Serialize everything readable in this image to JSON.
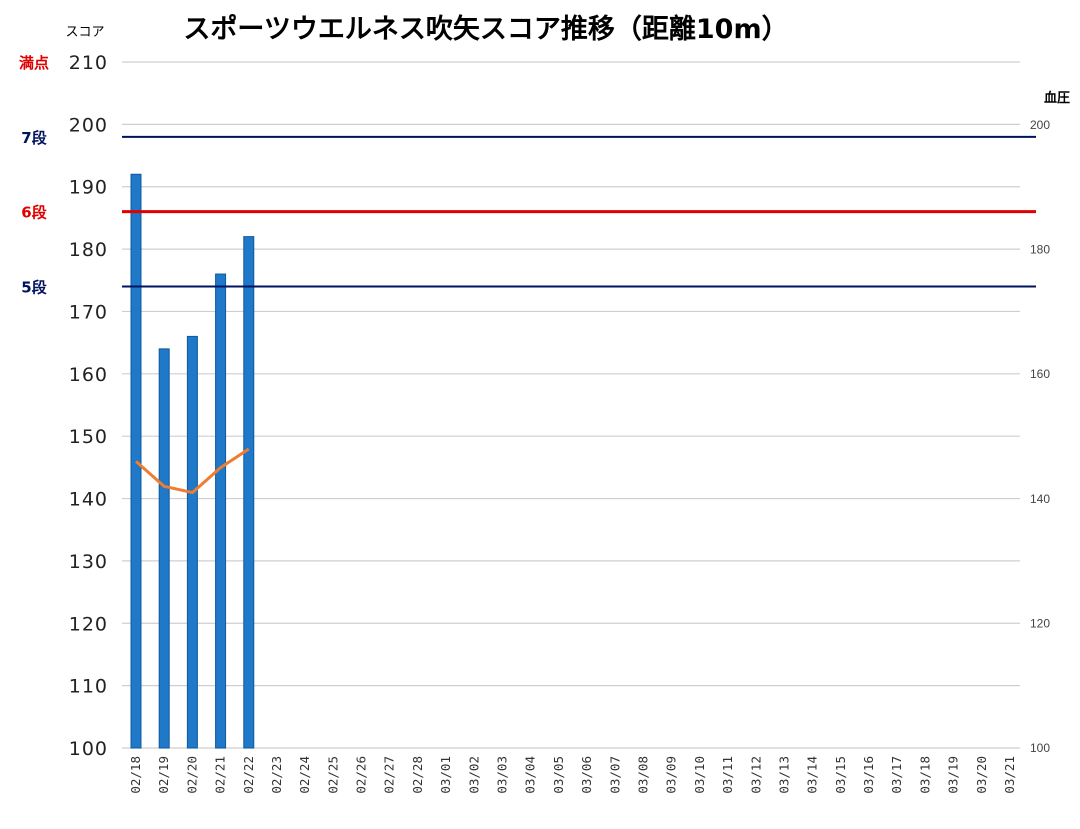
{
  "chart_data": {
    "type": "bar",
    "title": "スポーツウエルネス吹矢スコア推移（距離10m）",
    "ylabel": "スコア",
    "y2label": "血圧",
    "ylim": [
      100,
      210
    ],
    "y2lim": [
      100,
      210
    ],
    "yticks": [
      "100",
      "110",
      "120",
      "130",
      "140",
      "150",
      "160",
      "170",
      "180",
      "190",
      "200",
      "210"
    ],
    "y2ticks": [
      "100",
      "120",
      "140",
      "160",
      "180",
      "200"
    ],
    "grid": true,
    "categories": [
      "02/18",
      "02/19",
      "02/20",
      "02/21",
      "02/22",
      "02/23",
      "02/24",
      "02/25",
      "02/26",
      "02/27",
      "02/28",
      "03/01",
      "03/02",
      "03/03",
      "03/04",
      "03/05",
      "03/06",
      "03/07",
      "03/08",
      "03/09",
      "03/10",
      "03/11",
      "03/12",
      "03/13",
      "03/14",
      "03/15",
      "03/16",
      "03/17",
      "03/18",
      "03/19",
      "03/20",
      "03/21"
    ],
    "series": [
      {
        "kind": "bar",
        "axis": "left",
        "color": "#1f78c8",
        "values": [
          192,
          164,
          166,
          176,
          182,
          null,
          null,
          null,
          null,
          null,
          null,
          null,
          null,
          null,
          null,
          null,
          null,
          null,
          null,
          null,
          null,
          null,
          null,
          null,
          null,
          null,
          null,
          null,
          null,
          null,
          null,
          null
        ]
      },
      {
        "kind": "line",
        "axis": "right",
        "color": "#ed7d31",
        "values": [
          146,
          142,
          141,
          145,
          148,
          null,
          null,
          null,
          null,
          null,
          null,
          null,
          null,
          null,
          null,
          null,
          null,
          null,
          null,
          null,
          null,
          null,
          null,
          null,
          null,
          null,
          null,
          null,
          null,
          null,
          null,
          null
        ]
      }
    ],
    "reference_lines": [
      {
        "label": "満点",
        "value": 210,
        "color": "#e00000",
        "draw_line": false
      },
      {
        "label": "7段",
        "value": 198,
        "color": "#00135e",
        "draw_line": true
      },
      {
        "label": "6段",
        "value": 186,
        "color": "#e00000",
        "draw_line": true
      },
      {
        "label": "5段",
        "value": 174,
        "color": "#00135e",
        "draw_line": true
      }
    ]
  }
}
